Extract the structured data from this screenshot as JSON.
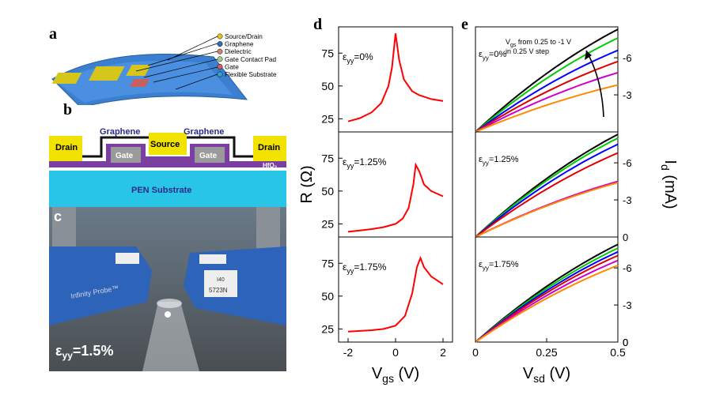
{
  "panel_labels": {
    "a": "a",
    "b": "b",
    "c": "c",
    "d": "d",
    "e": "e"
  },
  "panel_a": {
    "legend": [
      "Source/Drain",
      "Graphene",
      "Dielectric",
      "Gate Contact Pad",
      "Gate",
      "Flexible Substrate"
    ],
    "legend_colors": [
      "#e6c21e",
      "#2f6fb5",
      "#d08080",
      "#9fd08a",
      "#d06060",
      "#35a6c8"
    ]
  },
  "panel_b": {
    "drain_left": "Drain",
    "graphene_left": "Graphene",
    "source": "Source",
    "graphene_right": "Graphene",
    "drain_right": "Drain",
    "gate_left": "Gate",
    "gate_right": "Gate",
    "dielectric": "HfO",
    "dielectric_sub": "2",
    "substrate": "PEN Substrate",
    "colors": {
      "contact": "#f2e200",
      "graphene": "#111111",
      "dielectric": "#7a3fa0",
      "gate": "#9a9a9a",
      "substrate": "#29c5e6",
      "text_blue": "#2a2a8a"
    }
  },
  "panel_c": {
    "strain_label": "ε",
    "strain_sub": "yy",
    "strain_value": "=1.5%",
    "probe_text": "Infinity Probe™",
    "tag1": "I40",
    "tag2": "5723N"
  },
  "chart_data": [
    {
      "type": "line",
      "panel": "d",
      "xlabel_main": "V",
      "xlabel_sub": "gs",
      "xlabel_unit": " (V)",
      "ylabel": "R (Ω)",
      "xlim": [
        -2.4,
        2.4
      ],
      "x_ticks": [
        -2,
        0,
        2
      ],
      "x_tick_labels": [
        "-2",
        "0",
        "2"
      ],
      "series_color": "#ff0000",
      "subplots": [
        {
          "strain": "=0%",
          "ylim": [
            15,
            95
          ],
          "y_ticks": [
            25,
            50,
            75
          ],
          "x": [
            -2,
            -1.5,
            -1,
            -0.6,
            -0.3,
            -0.15,
            0,
            0.15,
            0.35,
            0.7,
            1,
            1.5,
            2
          ],
          "y": [
            23,
            25.5,
            30,
            37,
            50,
            64,
            90,
            70,
            55,
            46,
            43,
            40,
            38.5
          ]
        },
        {
          "strain": "=1.25%",
          "ylim": [
            15,
            95
          ],
          "y_ticks": [
            25,
            50,
            75
          ],
          "x": [
            -2,
            -1.5,
            -1,
            -0.5,
            0,
            0.3,
            0.55,
            0.75,
            0.85,
            1,
            1.2,
            1.5,
            2
          ],
          "y": [
            19,
            20,
            21,
            22.5,
            25,
            29,
            37,
            55,
            70,
            65,
            55,
            50,
            46
          ]
        },
        {
          "strain": "=1.75%",
          "ylim": [
            15,
            95
          ],
          "y_ticks": [
            25,
            50,
            75
          ],
          "x": [
            -2,
            -1.5,
            -1,
            -0.5,
            0,
            0.4,
            0.7,
            0.9,
            1.05,
            1.2,
            1.5,
            2
          ],
          "y": [
            23,
            23.5,
            24,
            25,
            27.5,
            35,
            52,
            72,
            79,
            72,
            65,
            59
          ]
        }
      ]
    },
    {
      "type": "line",
      "panel": "e",
      "xlabel_main": "V",
      "xlabel_sub": "sd",
      "xlabel_unit": " (V)",
      "ylabel_main": "I",
      "ylabel_sub": "d",
      "ylabel_unit": " (mA)",
      "xlim": [
        0,
        0.5
      ],
      "x_ticks": [
        0,
        0.25,
        0.5
      ],
      "x_tick_labels": [
        "0",
        "0.25",
        "0.5"
      ],
      "y_ticks": [
        0,
        -3,
        -6
      ],
      "y_tick_labels": [
        "0",
        "-3",
        "-6"
      ],
      "ylim": [
        0,
        -8.5
      ],
      "annotation_line1_main": "V",
      "annotation_line1_sub": "gs",
      "annotation_line1_rest": " from 0.25 to -1 V",
      "annotation_line2": "in 0.25 V step",
      "series_colors": [
        "#000000",
        "#00cc00",
        "#0000ff",
        "#dd0000",
        "#cc00cc",
        "#ff8800"
      ],
      "subplots": [
        {
          "strain": "=0%",
          "end_values": [
            -8.3,
            -7.6,
            -6.6,
            -5.7,
            -4.8,
            -3.8
          ]
        },
        {
          "strain": "=1.25%",
          "end_values": [
            -8.3,
            -8.0,
            -7.5,
            -6.8,
            -4.5,
            -4.4
          ]
        },
        {
          "strain": "=1.75%",
          "end_values": [
            -7.9,
            -7.6,
            -7.3,
            -7.0,
            -6.6,
            -6.2
          ]
        }
      ]
    }
  ]
}
